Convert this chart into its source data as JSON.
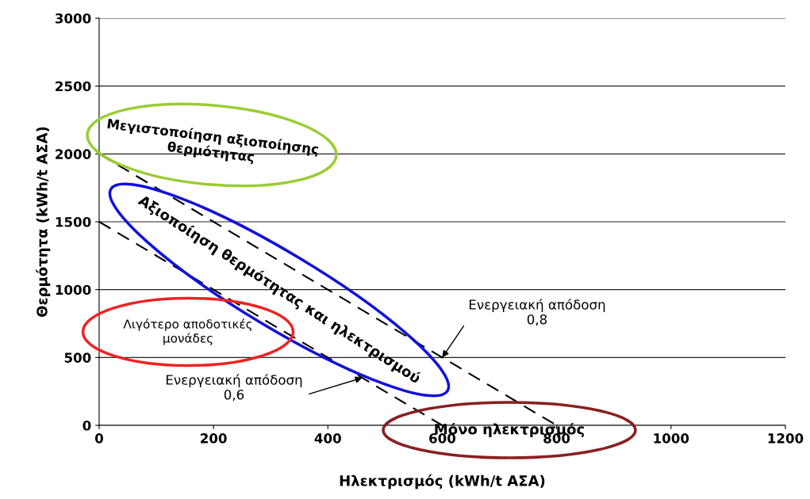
{
  "chart_data": {
    "type": "line",
    "xlabel": "Ηλεκτρισμός (kWh/t ΑΣΑ)",
    "ylabel": "Θερμότητα (kWh/t ΑΣΑ)",
    "series": [
      {
        "x": [
          0,
          800
        ],
        "values": [
          2000,
          0
        ],
        "color": "#000000"
      },
      {
        "x": [
          0,
          600
        ],
        "values": [
          1500,
          0
        ],
        "color": "#000000"
      }
    ],
    "line_style": "dashed",
    "marker": "none",
    "xlim": [
      0,
      1200
    ],
    "xticks": [
      0,
      200,
      400,
      600,
      800,
      1000,
      1200
    ],
    "ylim": [
      0,
      3000
    ],
    "yticks": [
      0,
      500,
      1000,
      1500,
      2000,
      2500,
      3000
    ],
    "grid": "y",
    "legend": false,
    "annotations": [
      "Μεγιστοποίηση αξιοποίησης\nθερμότητας",
      "Αξιοποίηση θερμότητας και ηλεκτρισμού",
      "Λιγότερο αποδοτικές\nμονάδες",
      "Μόνο ηλεκτρισμός",
      {
        "text": "Ενεργειακή απόδοση\n0,8",
        "x": 600,
        "y": 500
      },
      {
        "text": "Ενεργειακή απόδοση\n0,6",
        "x": 460,
        "y": 350
      }
    ]
  }
}
